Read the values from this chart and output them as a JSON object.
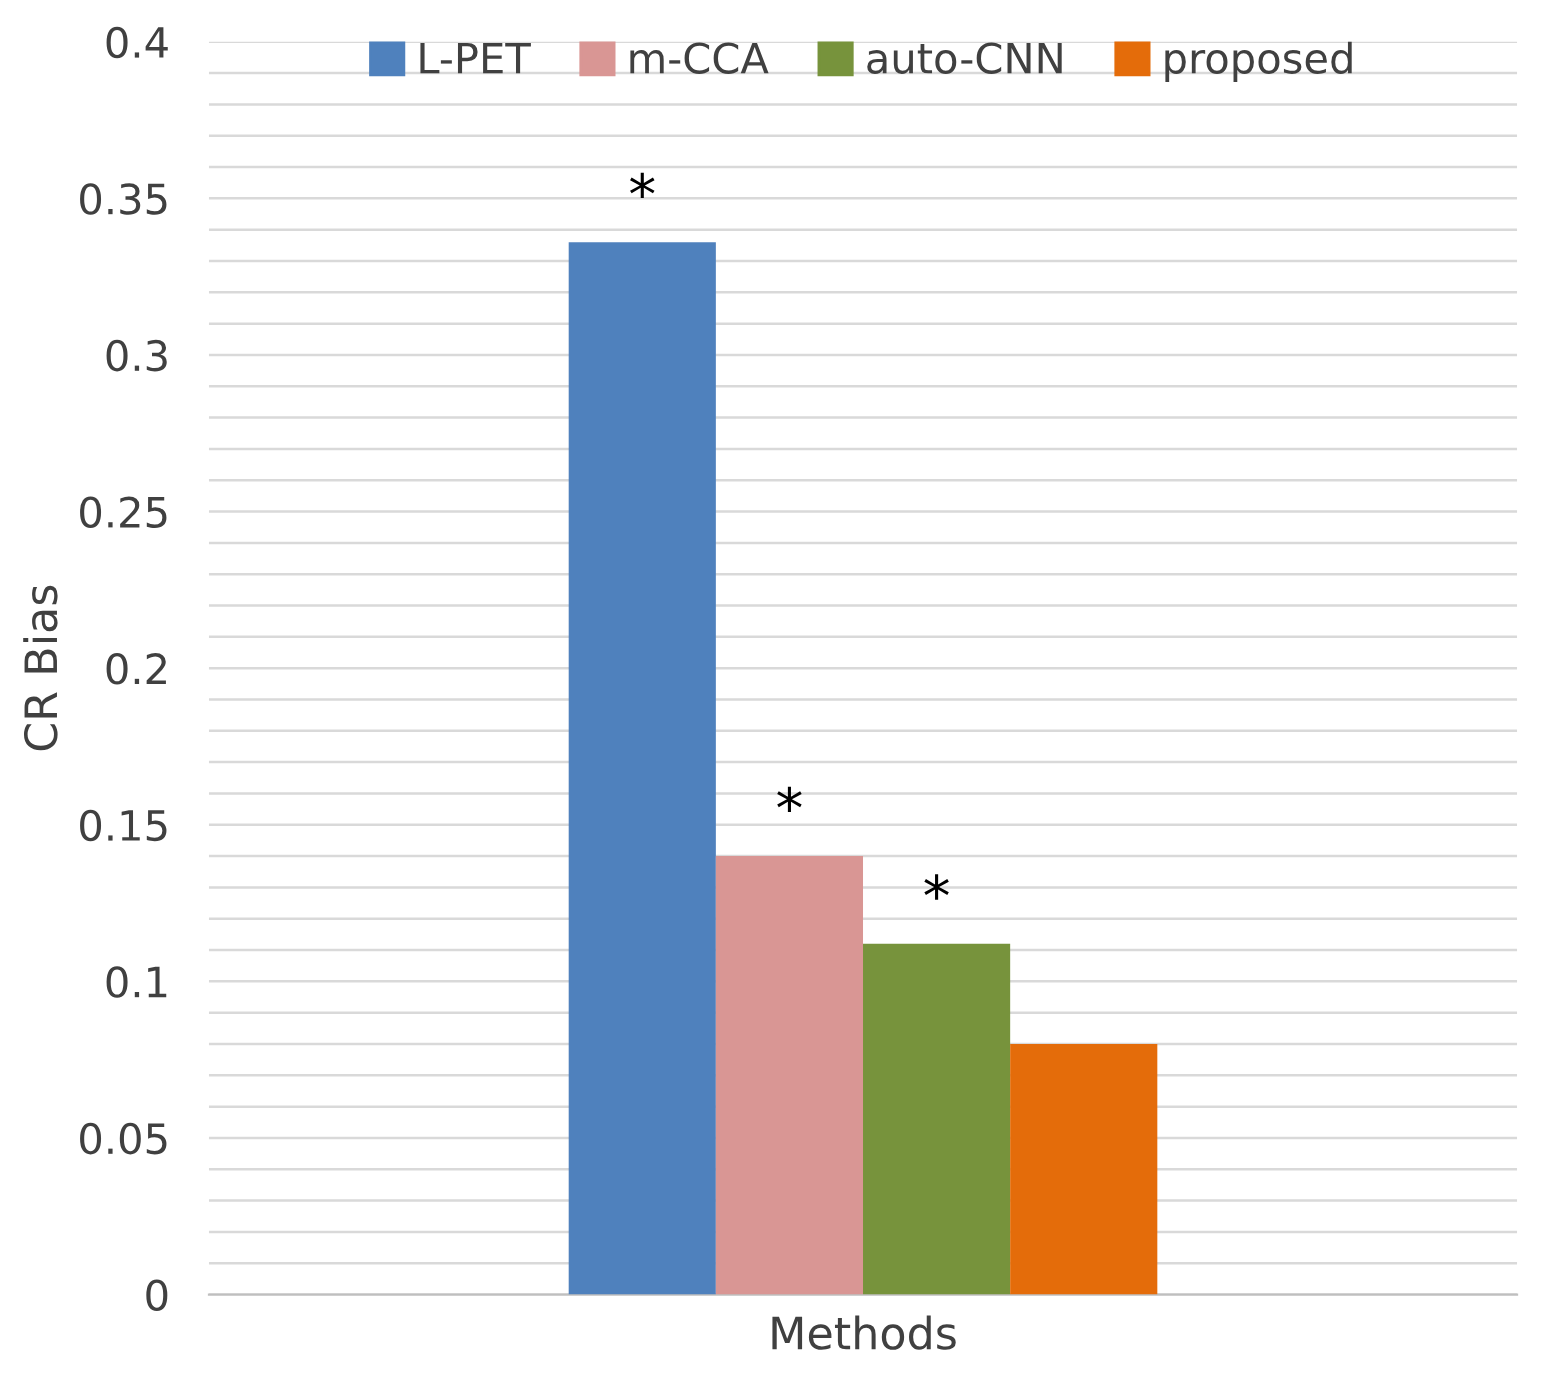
{
  "chart_data": {
    "type": "bar",
    "xlabel": "Methods",
    "ylabel": "CR Bias",
    "categories": [
      null
    ],
    "series": [
      {
        "name": "L-PET",
        "color": "#4f81bd",
        "values": [
          0.336
        ]
      },
      {
        "name": "m-CCA",
        "color": "#d99694",
        "values": [
          0.14
        ]
      },
      {
        "name": "auto-CNN",
        "color": "#77933c",
        "values": [
          0.112
        ]
      },
      {
        "name": "proposed",
        "color": "#e46c0a",
        "values": [
          0.08
        ]
      }
    ],
    "annotations": [
      {
        "text": "*",
        "y": 0.336
      },
      {
        "text": "*",
        "y": 0.14
      },
      {
        "text": "*",
        "y": 0.112
      }
    ],
    "ylim": [
      0,
      0.4
    ],
    "yticks": [
      0,
      {
        "value": 0.01,
        "label": null
      },
      {
        "value": 0.02,
        "label": null
      },
      {
        "value": 0.03,
        "label": null
      },
      {
        "value": 0.04,
        "label": null
      },
      0.05,
      {
        "value": 0.06,
        "label": null
      },
      {
        "value": 0.07,
        "label": null
      },
      {
        "value": 0.08,
        "label": null
      },
      {
        "value": 0.09,
        "label": null
      },
      0.1,
      {
        "value": 0.11,
        "label": null
      },
      {
        "value": 0.12,
        "label": null
      },
      {
        "value": 0.13,
        "label": null
      },
      {
        "value": 0.14,
        "label": null
      },
      0.15,
      {
        "value": 0.16,
        "label": null
      },
      {
        "value": 0.17,
        "label": null
      },
      {
        "value": 0.18,
        "label": null
      },
      {
        "value": 0.19,
        "label": null
      },
      0.2,
      {
        "value": 0.21,
        "label": null
      },
      {
        "value": 0.22,
        "label": null
      },
      {
        "value": 0.23,
        "label": null
      },
      {
        "value": 0.24,
        "label": null
      },
      0.25,
      {
        "value": 0.26,
        "label": null
      },
      {
        "value": 0.27,
        "label": null
      },
      {
        "value": 0.28,
        "label": null
      },
      {
        "value": 0.29,
        "label": null
      },
      0.3,
      {
        "value": 0.31,
        "label": null
      },
      {
        "value": 0.32,
        "label": null
      },
      {
        "value": 0.33,
        "label": null
      },
      {
        "value": 0.34,
        "label": null
      },
      0.35,
      {
        "value": 0.36,
        "label": null
      },
      {
        "value": 0.37,
        "label": null
      },
      {
        "value": 0.38,
        "label": null
      },
      {
        "value": 0.39,
        "label": null
      },
      0.4
    ],
    "grid": "y",
    "legend": "top"
  }
}
